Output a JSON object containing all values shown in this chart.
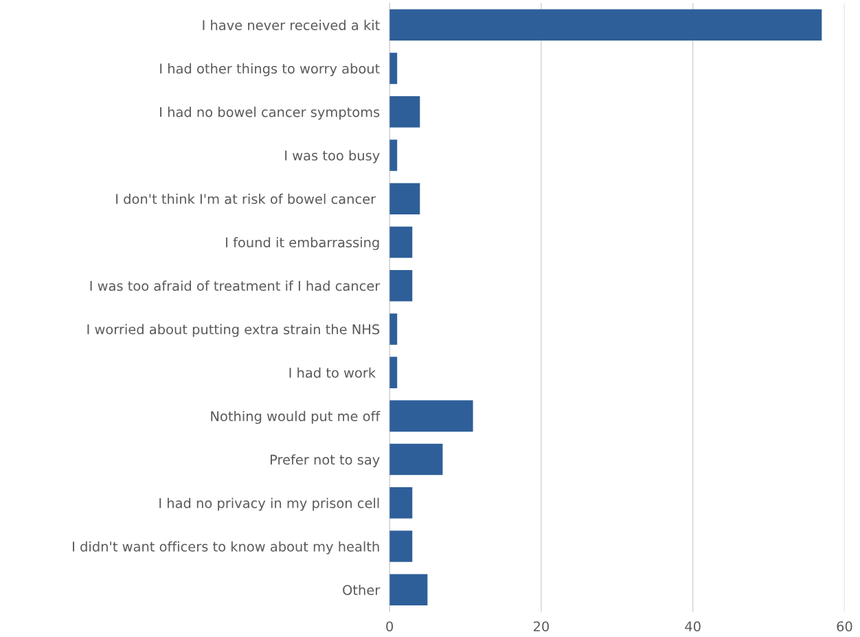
{
  "chart_data": {
    "type": "bar",
    "orientation": "horizontal",
    "categories": [
      "I have never received a kit",
      "I had other things to worry about",
      "I had no bowel cancer symptoms",
      "I was too busy",
      "I don't think I'm at risk of bowel cancer ",
      "I found it embarrassing",
      "I was too afraid of treatment if I had cancer",
      "I worried about putting extra strain the NHS",
      "I had to work ",
      "Nothing would put me off",
      "Prefer not to say",
      "I had no privacy in my prison cell",
      "I didn't want officers to know about my health",
      "Other"
    ],
    "values": [
      57,
      1,
      4,
      1,
      4,
      3,
      3,
      1,
      1,
      11,
      7,
      3,
      3,
      5
    ],
    "color": "#2e5f99",
    "xlim": [
      0,
      60
    ],
    "xticks": [
      0,
      20,
      40,
      60
    ],
    "grid": "x"
  }
}
